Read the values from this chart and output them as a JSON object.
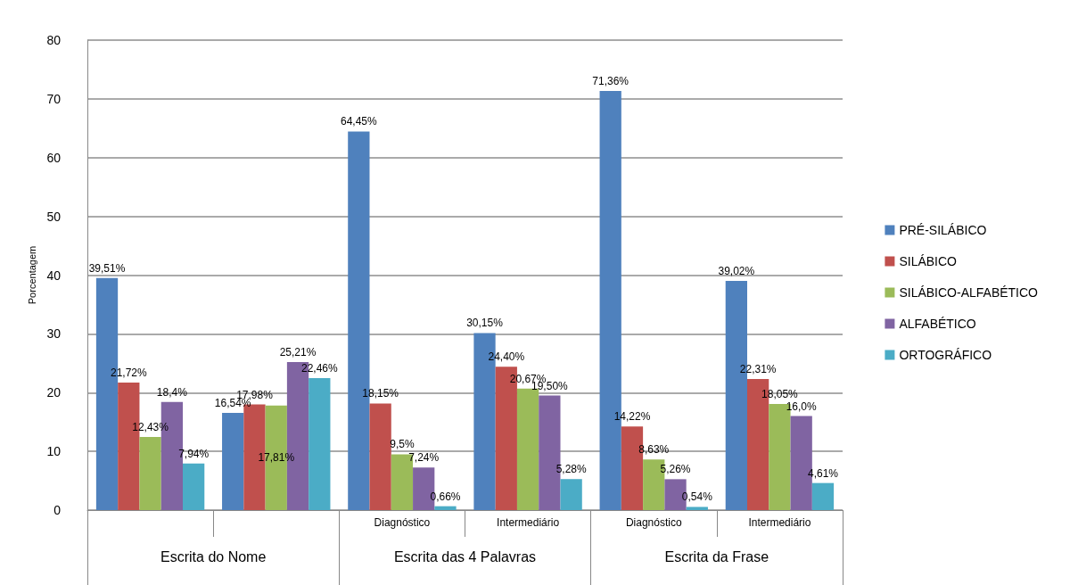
{
  "chart_data": {
    "type": "bar",
    "ylabel": "Porcentagem",
    "categories": [
      null,
      null,
      "Diagnóstico",
      "Intermediário",
      "Diagnóstico",
      "Intermediário"
    ],
    "annotations": [
      "Escrita do Nome",
      "Escrita das 4 Palavras",
      "Escrita da Frase"
    ],
    "series": [
      {
        "name": "PRÉ-SILÁBICO",
        "color": "#4f81bd",
        "values": [
          39.51,
          16.54,
          64.45,
          30.15,
          71.36,
          39.02
        ],
        "value_labels": [
          "39,51%",
          "16,54%",
          "64,45%",
          "30,15%",
          "71,36%",
          "39,02%"
        ]
      },
      {
        "name": "SILÁBICO",
        "color": "#c0504d",
        "values": [
          21.72,
          17.98,
          18.15,
          24.4,
          14.22,
          22.31
        ],
        "value_labels": [
          "21,72%",
          "17,98%",
          "18,15%",
          "24,40%",
          "14,22%",
          "22,31%"
        ]
      },
      {
        "name": "SILÁBICO-ALFABÉTICO",
        "color": "#9bbb59",
        "values": [
          12.43,
          17.81,
          9.5,
          20.67,
          8.63,
          18.05
        ],
        "value_labels": [
          "12,43%",
          "17,81%",
          "9,5%",
          "20,67%",
          "8,63%",
          "18,05%"
        ]
      },
      {
        "name": "ALFABÉTICO",
        "color": "#8064a2",
        "values": [
          18.4,
          25.21,
          7.24,
          19.5,
          5.26,
          16.0
        ],
        "value_labels": [
          "18,4%",
          "25,21%",
          "7,24%",
          "19,50%",
          "5,26%",
          "16,0%"
        ]
      },
      {
        "name": "ORTOGRÁFICO",
        "color": "#4bacc6",
        "values": [
          7.94,
          22.46,
          0.66,
          5.28,
          0.54,
          4.61
        ],
        "value_labels": [
          "7,94%",
          "22,46%",
          "0,66%",
          "5,28%",
          "0,54%",
          "4,61%"
        ]
      }
    ],
    "ylim": [
      0,
      80
    ],
    "yticks": [
      0,
      10,
      20,
      30,
      40,
      50,
      60,
      70,
      80
    ],
    "grid": "y",
    "legend": "right"
  }
}
